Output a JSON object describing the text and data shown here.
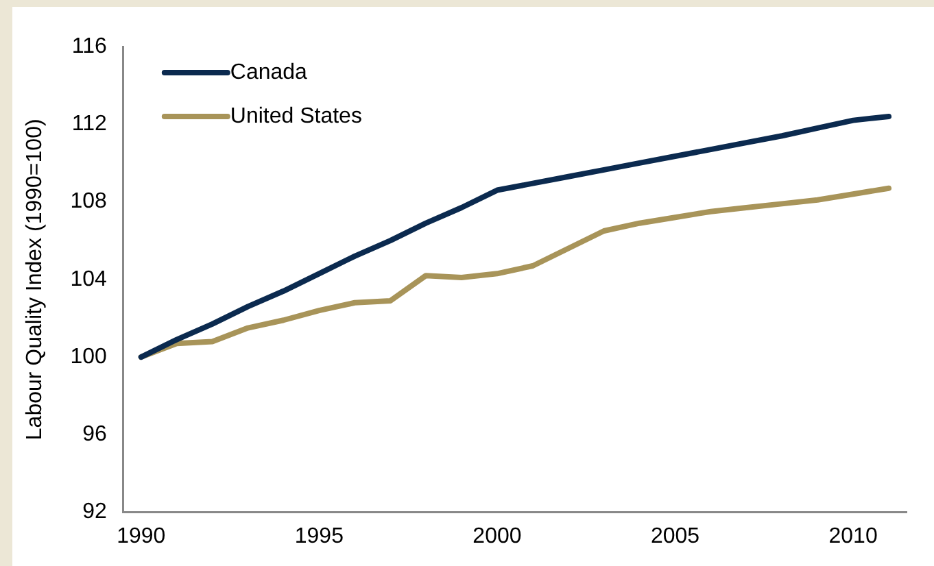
{
  "chart_data": {
    "type": "line",
    "ylabel": "Labour Quality Index (1990=100)",
    "x": [
      1990,
      1991,
      1992,
      1993,
      1994,
      1995,
      1996,
      1997,
      1998,
      1999,
      2000,
      2001,
      2002,
      2003,
      2004,
      2005,
      2006,
      2007,
      2008,
      2009,
      2010,
      2011
    ],
    "series": [
      {
        "name": "Canada",
        "color": "#0b2a4f",
        "values": [
          100,
          100.9,
          101.7,
          102.6,
          103.4,
          104.3,
          105.2,
          106.0,
          106.9,
          107.7,
          108.6,
          108.95,
          109.3,
          109.65,
          110.0,
          110.35,
          110.7,
          111.05,
          111.4,
          111.8,
          112.2,
          112.4
        ]
      },
      {
        "name": "United States",
        "color": "#a89459",
        "values": [
          100,
          100.7,
          100.8,
          101.5,
          101.9,
          102.4,
          102.8,
          102.9,
          104.2,
          104.1,
          104.3,
          104.7,
          105.6,
          106.5,
          106.9,
          107.2,
          107.5,
          107.7,
          107.9,
          108.1,
          108.4,
          108.7
        ]
      }
    ],
    "xlim": [
      1989.5,
      2011.5
    ],
    "xticks": [
      1990,
      1995,
      2000,
      2005,
      2010
    ],
    "ylim": [
      92,
      116
    ],
    "yticks": [
      92,
      96,
      100,
      104,
      108,
      112,
      116
    ],
    "grid": false,
    "legend": "top left",
    "marker": "none",
    "line_style": "solid"
  }
}
